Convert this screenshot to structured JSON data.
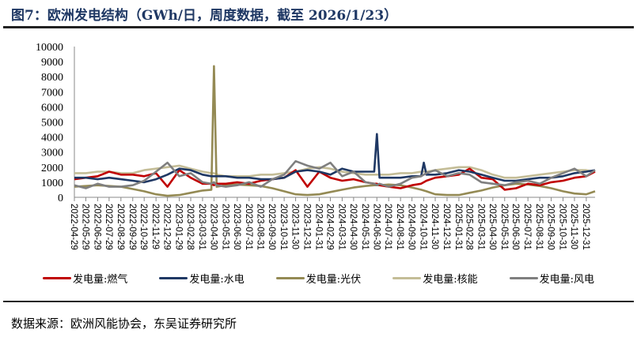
{
  "title": "图7：欧洲发电结构（GWh/日，周度数据，截至 2026/1/23）",
  "source": "数据来源：欧洲风能协会，东吴证券研究所",
  "chart_data": {
    "type": "line",
    "title": "图7：欧洲发电结构（GWh/日，周度数据，截至 2026/1/23）",
    "xlabel": "",
    "ylabel": "",
    "ylim": [
      0,
      10000
    ],
    "yticks": [
      0,
      1000,
      2000,
      3000,
      4000,
      5000,
      6000,
      7000,
      8000,
      9000,
      10000
    ],
    "grid": false,
    "legend_position": "bottom",
    "xtick_labels": [
      "2022-04-29",
      "2022-05-29",
      "2022-06-29",
      "2022-07-29",
      "2022-08-29",
      "2022-09-29",
      "2022-10-29",
      "2022-11-29",
      "2022-12-29",
      "2023-01-29",
      "2023-02-28",
      "2023-03-31",
      "2023-04-30",
      "2023-05-31",
      "2023-06-30",
      "2023-07-31",
      "2023-08-31",
      "2023-09-30",
      "2023-10-31",
      "2023-11-30",
      "2023-12-31",
      "2024-01-31",
      "2024-02-29",
      "2024-03-31",
      "2024-04-30",
      "2024-05-31",
      "2024-06-30",
      "2024-07-31",
      "2024-08-31",
      "2024-09-30",
      "2024-10-31",
      "2024-11-30",
      "2024-12-31",
      "2025-01-31",
      "2025-02-28",
      "2025-03-31",
      "2025-04-30",
      "2025-05-31",
      "2025-06-30",
      "2025-07-31",
      "2025-08-31",
      "2025-09-30",
      "2025-10-31",
      "2025-11-30",
      "2025-12-31"
    ],
    "x": [
      "2022-04-29",
      "2022-05-29",
      "2022-06-29",
      "2022-07-29",
      "2022-08-29",
      "2022-09-29",
      "2022-10-29",
      "2022-11-29",
      "2022-12-29",
      "2023-01-29",
      "2023-02-28",
      "2023-03-31",
      "2023-04-23",
      "2023-04-30",
      "2023-05-07",
      "2023-05-31",
      "2023-06-30",
      "2023-07-31",
      "2023-08-31",
      "2023-09-30",
      "2023-10-31",
      "2023-11-30",
      "2023-12-31",
      "2024-01-31",
      "2024-02-29",
      "2024-03-31",
      "2024-04-30",
      "2024-05-31",
      "2024-06-23",
      "2024-06-30",
      "2024-07-07",
      "2024-07-31",
      "2024-08-31",
      "2024-09-30",
      "2024-10-24",
      "2024-10-31",
      "2024-11-07",
      "2024-11-30",
      "2024-12-31",
      "2025-01-31",
      "2025-02-28",
      "2025-03-31",
      "2025-04-30",
      "2025-05-31",
      "2025-06-30",
      "2025-07-31",
      "2025-08-31",
      "2025-09-30",
      "2025-10-31",
      "2025-11-30",
      "2025-12-31",
      "2026-01-23"
    ],
    "series": [
      {
        "name": "发电量:燃气",
        "color": "#c00000",
        "values": [
          1200,
          1300,
          1400,
          1700,
          1500,
          1500,
          1400,
          1600,
          700,
          1800,
          1300,
          900,
          900,
          800,
          900,
          900,
          1000,
          900,
          1100,
          1200,
          1300,
          1800,
          700,
          1700,
          1300,
          1100,
          1200,
          1000,
          900,
          900,
          800,
          700,
          600,
          800,
          900,
          1000,
          1100,
          1300,
          1400,
          1500,
          1900,
          1300,
          1200,
          500,
          600,
          900,
          800,
          1000,
          1100,
          1300,
          1400,
          1700
        ]
      },
      {
        "name": "发电量:水电",
        "color": "#1f3864",
        "values": [
          1300,
          1300,
          1200,
          1300,
          1200,
          1100,
          1000,
          1200,
          1500,
          1900,
          1800,
          1500,
          1400,
          1400,
          1400,
          1400,
          1300,
          1300,
          1200,
          1200,
          1300,
          1700,
          1800,
          1700,
          1500,
          1900,
          1700,
          1700,
          1700,
          4200,
          1300,
          1300,
          1300,
          1400,
          1400,
          2300,
          1500,
          1500,
          1600,
          1800,
          1700,
          1500,
          1300,
          1100,
          1100,
          1200,
          1300,
          1300,
          1400,
          1600,
          1700,
          1800
        ]
      },
      {
        "name": "发电量:光伏",
        "color": "#948a54",
        "values": [
          700,
          750,
          800,
          750,
          700,
          550,
          400,
          200,
          100,
          150,
          300,
          450,
          500,
          8700,
          700,
          800,
          850,
          800,
          750,
          600,
          400,
          200,
          150,
          200,
          350,
          500,
          650,
          750,
          800,
          800,
          800,
          850,
          800,
          650,
          500,
          450,
          400,
          200,
          150,
          150,
          300,
          450,
          650,
          800,
          900,
          850,
          750,
          600,
          400,
          250,
          200,
          400
        ]
      },
      {
        "name": "发电量:核能",
        "color": "#c4bd97",
        "values": [
          1600,
          1600,
          1700,
          1700,
          1600,
          1600,
          1800,
          1900,
          2000,
          2100,
          1900,
          1700,
          1600,
          1600,
          1500,
          1400,
          1400,
          1400,
          1500,
          1500,
          1600,
          1700,
          1900,
          2000,
          1900,
          1700,
          1600,
          1500,
          1500,
          1500,
          1500,
          1500,
          1600,
          1600,
          1700,
          1700,
          1700,
          1800,
          1900,
          2000,
          2000,
          1800,
          1500,
          1300,
          1300,
          1400,
          1500,
          1600,
          1700,
          1800,
          1800,
          1700
        ]
      },
      {
        "name": "发电量:风电",
        "color": "#7f7f7f",
        "values": [
          800,
          600,
          900,
          700,
          700,
          800,
          1100,
          1700,
          2300,
          1400,
          1600,
          1000,
          900,
          1000,
          800,
          700,
          800,
          1000,
          700,
          1200,
          1500,
          2400,
          2100,
          1900,
          2300,
          1400,
          1700,
          1000,
          900,
          800,
          900,
          700,
          900,
          1300,
          1400,
          1500,
          1600,
          1800,
          1400,
          1600,
          1500,
          1000,
          900,
          800,
          1000,
          1100,
          900,
          1300,
          1600,
          1900,
          1400,
          1800
        ]
      }
    ]
  }
}
